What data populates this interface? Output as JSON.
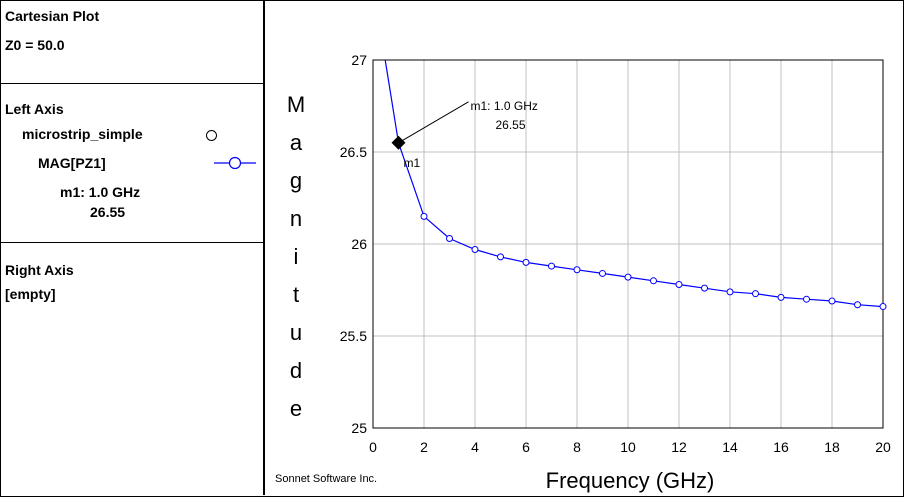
{
  "panel": {
    "title": "Cartesian Plot",
    "z0": "Z0 = 50.0",
    "left_axis": {
      "header": "Left Axis",
      "project": "microstrip_simple",
      "trace": "MAG[PZ1]",
      "marker_line1": "m1: 1.0 GHz",
      "marker_line2": "26.55"
    },
    "right_axis": {
      "header": "Right Axis",
      "value": "[empty]"
    }
  },
  "footer": {
    "brand": "Sonnet Software Inc."
  },
  "colors": {
    "series": "#0000ff",
    "grid": "#c0c0c0",
    "marker": "#000000"
  },
  "chart_data": {
    "type": "line",
    "xlabel": "Frequency (GHz)",
    "ylabel": "Magnitude",
    "xlim": [
      0,
      20
    ],
    "ylim": [
      25,
      27
    ],
    "xticks": [
      "0",
      "2",
      "4",
      "6",
      "8",
      "10",
      "12",
      "14",
      "16",
      "18",
      "20"
    ],
    "yticks": [
      "25",
      "25.5",
      "26",
      "26.5",
      "27"
    ],
    "grid": true,
    "series": [
      {
        "name": "MAG[PZ1]",
        "x": [
          0.48,
          1,
          2,
          3,
          4,
          5,
          6,
          7,
          8,
          9,
          10,
          11,
          12,
          13,
          14,
          15,
          16,
          17,
          18,
          19,
          20
        ],
        "y": [
          27.0,
          26.55,
          26.15,
          26.03,
          25.97,
          25.93,
          25.9,
          25.88,
          25.86,
          25.84,
          25.82,
          25.8,
          25.78,
          25.76,
          25.74,
          25.73,
          25.71,
          25.7,
          25.69,
          25.67,
          25.66
        ],
        "circle_markers": [
          2,
          3,
          4,
          5,
          6,
          7,
          8,
          9,
          10,
          11,
          12,
          13,
          14,
          15,
          16,
          17,
          18,
          19,
          20
        ]
      }
    ],
    "marker": {
      "label": "m1",
      "x": 1.0,
      "y": 26.55,
      "annotation_line1": "m1: 1.0 GHz",
      "annotation_line2": "26.55"
    }
  }
}
